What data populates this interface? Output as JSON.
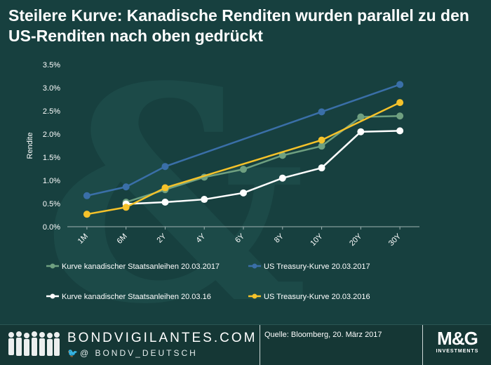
{
  "title": "Steilere Kurve: Kanadische Renditen wurden parallel zu den US-Renditen nach oben gedrückt",
  "chart_data": {
    "type": "line",
    "categories": [
      "1M",
      "6M",
      "2Y",
      "4Y",
      "6Y",
      "8Y",
      "10Y",
      "20Y",
      "30Y"
    ],
    "ylabel": "Rendite",
    "xlabel": "",
    "ylim": [
      0,
      3.5
    ],
    "yticks": [
      "0.0%",
      "0.5%",
      "1.0%",
      "1.5%",
      "2.0%",
      "2.5%",
      "3.0%",
      "3.5%"
    ],
    "grid": false,
    "legend_position": "bottom",
    "series": [
      {
        "name": "Kurve kanadischer Staatsanleihen 20.03.2017",
        "color": "#6fa080",
        "values": [
          null,
          0.53,
          0.8,
          1.07,
          1.24,
          1.54,
          1.74,
          2.37,
          2.39
        ]
      },
      {
        "name": "US Treasury-Kurve 20.03.2017",
        "color": "#3a6fa8",
        "values": [
          0.67,
          0.86,
          1.3,
          null,
          null,
          null,
          2.48,
          null,
          3.07
        ]
      },
      {
        "name": "Kurve kanadischer Staatsanleihen 20.03.16",
        "color": "#ffffff",
        "values": [
          null,
          0.49,
          0.53,
          0.59,
          0.73,
          1.05,
          1.27,
          2.05,
          2.07
        ]
      },
      {
        "name": "US Treasury-Kurve 20.03.2016",
        "color": "#f5c22a",
        "values": [
          0.27,
          0.42,
          0.84,
          null,
          null,
          null,
          1.87,
          null,
          2.68
        ]
      }
    ]
  },
  "footer": {
    "brand": "BONDVIGILANTES.COM",
    "handle": "@ BONDV_DEUTSCH",
    "source": "Quelle: Bloomberg, 20. März 2017",
    "logo_text": "M&G",
    "logo_sub": "INVESTMENTS"
  }
}
